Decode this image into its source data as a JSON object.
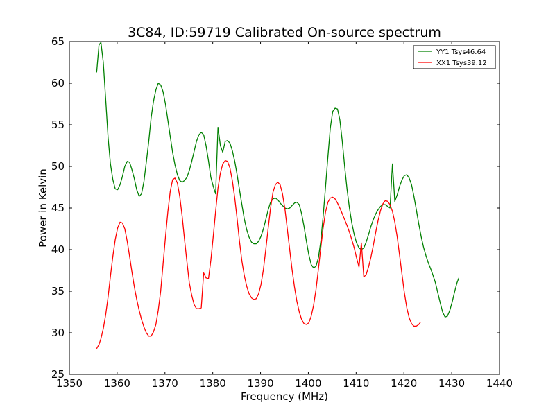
{
  "chart_data": {
    "type": "line",
    "title": "3C84, ID:59719 Calibrated On-source spectrum",
    "xlabel": "Frequency (MHz)",
    "ylabel": "Power in Kelvin",
    "xlim": [
      1350,
      1440
    ],
    "ylim": [
      25,
      65
    ],
    "xticks": [
      1350,
      1360,
      1370,
      1380,
      1390,
      1400,
      1410,
      1420,
      1430,
      1440
    ],
    "yticks": [
      25,
      30,
      35,
      40,
      45,
      50,
      55,
      60,
      65
    ],
    "xtick_labels": [
      "1350",
      "1360",
      "1370",
      "1380",
      "1390",
      "1400",
      "1410",
      "1420",
      "1430",
      "1440"
    ],
    "ytick_labels": [
      "25",
      "30",
      "35",
      "40",
      "45",
      "50",
      "55",
      "60",
      "65"
    ],
    "grid": false,
    "legend_position": "top-right",
    "series": [
      {
        "name": "YY1 Tsys46.64",
        "color": "#008000",
        "points": [
          [
            1355.7,
            61.3
          ],
          [
            1356.2,
            64.6
          ],
          [
            1356.6,
            64.9
          ],
          [
            1357.1,
            62.5
          ],
          [
            1357.6,
            58.0
          ],
          [
            1358.1,
            53.5
          ],
          [
            1358.6,
            50.3
          ],
          [
            1359.1,
            48.4
          ],
          [
            1359.6,
            47.3
          ],
          [
            1360.1,
            47.2
          ],
          [
            1360.6,
            47.8
          ],
          [
            1361.1,
            48.8
          ],
          [
            1361.6,
            50.0
          ],
          [
            1362.1,
            50.6
          ],
          [
            1362.6,
            50.5
          ],
          [
            1363.1,
            49.6
          ],
          [
            1363.6,
            48.5
          ],
          [
            1364.1,
            47.2
          ],
          [
            1364.6,
            46.4
          ],
          [
            1365.1,
            46.7
          ],
          [
            1365.6,
            48.2
          ],
          [
            1366.1,
            50.5
          ],
          [
            1366.6,
            53.0
          ],
          [
            1367.1,
            55.8
          ],
          [
            1367.6,
            57.8
          ],
          [
            1368.1,
            59.2
          ],
          [
            1368.6,
            60.0
          ],
          [
            1369.1,
            59.8
          ],
          [
            1369.6,
            59.0
          ],
          [
            1370.1,
            57.5
          ],
          [
            1370.6,
            55.6
          ],
          [
            1371.1,
            53.6
          ],
          [
            1371.6,
            51.7
          ],
          [
            1372.1,
            50.2
          ],
          [
            1372.6,
            49.0
          ],
          [
            1373.1,
            48.3
          ],
          [
            1373.6,
            48.1
          ],
          [
            1374.1,
            48.3
          ],
          [
            1374.6,
            48.7
          ],
          [
            1375.1,
            49.5
          ],
          [
            1375.6,
            50.6
          ],
          [
            1376.1,
            51.8
          ],
          [
            1376.6,
            53.0
          ],
          [
            1377.1,
            53.8
          ],
          [
            1377.6,
            54.1
          ],
          [
            1378.1,
            53.8
          ],
          [
            1378.6,
            52.5
          ],
          [
            1379.1,
            50.7
          ],
          [
            1379.6,
            48.7
          ],
          [
            1380.1,
            47.6
          ],
          [
            1380.6,
            46.7
          ],
          [
            1381.1,
            54.7
          ],
          [
            1381.6,
            52.5
          ],
          [
            1382.1,
            51.7
          ],
          [
            1382.6,
            53.0
          ],
          [
            1383.1,
            53.1
          ],
          [
            1383.6,
            52.8
          ],
          [
            1384.1,
            51.9
          ],
          [
            1384.6,
            50.6
          ],
          [
            1385.1,
            49.0
          ],
          [
            1385.6,
            47.2
          ],
          [
            1386.1,
            45.4
          ],
          [
            1386.6,
            43.7
          ],
          [
            1387.1,
            42.4
          ],
          [
            1387.6,
            41.5
          ],
          [
            1388.1,
            40.9
          ],
          [
            1388.6,
            40.7
          ],
          [
            1389.1,
            40.7
          ],
          [
            1389.6,
            41.0
          ],
          [
            1390.1,
            41.6
          ],
          [
            1390.6,
            42.5
          ],
          [
            1391.1,
            43.6
          ],
          [
            1391.6,
            44.8
          ],
          [
            1392.1,
            45.7
          ],
          [
            1392.6,
            46.1
          ],
          [
            1393.1,
            46.2
          ],
          [
            1393.6,
            46.0
          ],
          [
            1394.1,
            45.6
          ],
          [
            1394.6,
            45.3
          ],
          [
            1395.1,
            45.0
          ],
          [
            1395.6,
            44.9
          ],
          [
            1396.1,
            45.0
          ],
          [
            1396.6,
            45.3
          ],
          [
            1397.1,
            45.6
          ],
          [
            1397.6,
            45.7
          ],
          [
            1398.1,
            45.4
          ],
          [
            1398.6,
            44.3
          ],
          [
            1399.1,
            42.8
          ],
          [
            1399.6,
            41.0
          ],
          [
            1400.1,
            39.4
          ],
          [
            1400.6,
            38.2
          ],
          [
            1401.1,
            37.8
          ],
          [
            1401.6,
            38.0
          ],
          [
            1402.1,
            39.0
          ],
          [
            1402.6,
            41.0
          ],
          [
            1403.1,
            44.0
          ],
          [
            1403.6,
            47.5
          ],
          [
            1404.1,
            51.2
          ],
          [
            1404.6,
            54.6
          ],
          [
            1405.1,
            56.6
          ],
          [
            1405.6,
            57.0
          ],
          [
            1406.1,
            56.9
          ],
          [
            1406.6,
            55.6
          ],
          [
            1407.1,
            53.0
          ],
          [
            1407.6,
            50.0
          ],
          [
            1408.1,
            47.3
          ],
          [
            1408.6,
            45.0
          ],
          [
            1409.1,
            43.2
          ],
          [
            1409.6,
            41.8
          ],
          [
            1410.1,
            40.8
          ],
          [
            1410.6,
            40.2
          ],
          [
            1411.1,
            40.0
          ],
          [
            1411.6,
            40.2
          ],
          [
            1412.1,
            40.9
          ],
          [
            1412.6,
            41.8
          ],
          [
            1413.1,
            42.8
          ],
          [
            1413.6,
            43.6
          ],
          [
            1414.1,
            44.3
          ],
          [
            1414.6,
            44.8
          ],
          [
            1415.1,
            45.2
          ],
          [
            1415.6,
            45.4
          ],
          [
            1416.1,
            45.4
          ],
          [
            1416.6,
            45.2
          ],
          [
            1417.1,
            45.0
          ],
          [
            1417.6,
            50.3
          ],
          [
            1418.1,
            45.8
          ],
          [
            1418.6,
            46.6
          ],
          [
            1419.1,
            47.6
          ],
          [
            1419.6,
            48.4
          ],
          [
            1420.1,
            48.9
          ],
          [
            1420.6,
            49.0
          ],
          [
            1421.1,
            48.6
          ],
          [
            1421.6,
            47.8
          ],
          [
            1422.1,
            46.4
          ],
          [
            1422.6,
            44.8
          ],
          [
            1423.1,
            43.1
          ],
          [
            1423.6,
            41.6
          ],
          [
            1424.1,
            40.3
          ],
          [
            1424.6,
            39.3
          ],
          [
            1425.1,
            38.4
          ],
          [
            1425.6,
            37.7
          ],
          [
            1426.1,
            36.9
          ],
          [
            1426.6,
            36.0
          ],
          [
            1427.1,
            34.8
          ],
          [
            1427.6,
            33.6
          ],
          [
            1428.1,
            32.5
          ],
          [
            1428.6,
            31.9
          ],
          [
            1429.1,
            32.0
          ],
          [
            1429.6,
            32.7
          ],
          [
            1430.1,
            33.7
          ],
          [
            1430.6,
            34.9
          ],
          [
            1431.1,
            36.0
          ],
          [
            1431.5,
            36.6
          ]
        ]
      },
      {
        "name": "XX1 Tsys39.12",
        "color": "#ff0000",
        "points": [
          [
            1355.7,
            28.1
          ],
          [
            1356.2,
            28.6
          ],
          [
            1356.6,
            29.3
          ],
          [
            1357.1,
            30.5
          ],
          [
            1357.6,
            32.2
          ],
          [
            1358.1,
            34.3
          ],
          [
            1358.6,
            36.8
          ],
          [
            1359.1,
            39.2
          ],
          [
            1359.6,
            41.2
          ],
          [
            1360.1,
            42.6
          ],
          [
            1360.6,
            43.3
          ],
          [
            1361.1,
            43.2
          ],
          [
            1361.6,
            42.5
          ],
          [
            1362.1,
            41.0
          ],
          [
            1362.6,
            39.2
          ],
          [
            1363.1,
            37.3
          ],
          [
            1363.6,
            35.5
          ],
          [
            1364.1,
            34.0
          ],
          [
            1364.6,
            32.7
          ],
          [
            1365.1,
            31.6
          ],
          [
            1365.6,
            30.7
          ],
          [
            1366.1,
            30.0
          ],
          [
            1366.6,
            29.6
          ],
          [
            1367.1,
            29.6
          ],
          [
            1367.6,
            30.1
          ],
          [
            1368.1,
            31.0
          ],
          [
            1368.6,
            32.7
          ],
          [
            1369.1,
            35.0
          ],
          [
            1369.6,
            38.2
          ],
          [
            1370.1,
            41.5
          ],
          [
            1370.6,
            44.5
          ],
          [
            1371.1,
            47.0
          ],
          [
            1371.6,
            48.4
          ],
          [
            1372.1,
            48.6
          ],
          [
            1372.6,
            48.0
          ],
          [
            1373.1,
            46.4
          ],
          [
            1373.6,
            44.0
          ],
          [
            1374.1,
            41.2
          ],
          [
            1374.6,
            38.5
          ],
          [
            1375.1,
            36.0
          ],
          [
            1375.6,
            34.5
          ],
          [
            1376.1,
            33.4
          ],
          [
            1376.6,
            32.9
          ],
          [
            1377.1,
            32.9
          ],
          [
            1377.6,
            33.0
          ],
          [
            1378.1,
            37.2
          ],
          [
            1378.6,
            36.6
          ],
          [
            1379.1,
            36.5
          ],
          [
            1379.6,
            38.7
          ],
          [
            1380.1,
            41.6
          ],
          [
            1380.6,
            44.6
          ],
          [
            1381.1,
            47.4
          ],
          [
            1381.6,
            49.2
          ],
          [
            1382.1,
            50.3
          ],
          [
            1382.6,
            50.7
          ],
          [
            1383.1,
            50.6
          ],
          [
            1383.6,
            49.8
          ],
          [
            1384.1,
            48.3
          ],
          [
            1384.6,
            46.2
          ],
          [
            1385.1,
            43.7
          ],
          [
            1385.6,
            41.0
          ],
          [
            1386.1,
            38.6
          ],
          [
            1386.6,
            36.9
          ],
          [
            1387.1,
            35.6
          ],
          [
            1387.6,
            34.7
          ],
          [
            1388.1,
            34.2
          ],
          [
            1388.6,
            34.0
          ],
          [
            1389.1,
            34.1
          ],
          [
            1389.6,
            34.7
          ],
          [
            1390.1,
            35.8
          ],
          [
            1390.6,
            37.6
          ],
          [
            1391.1,
            40.0
          ],
          [
            1391.6,
            42.6
          ],
          [
            1392.1,
            45.0
          ],
          [
            1392.6,
            46.9
          ],
          [
            1393.1,
            47.8
          ],
          [
            1393.6,
            48.1
          ],
          [
            1394.1,
            47.8
          ],
          [
            1394.6,
            46.7
          ],
          [
            1395.1,
            44.9
          ],
          [
            1395.6,
            42.5
          ],
          [
            1396.1,
            40.0
          ],
          [
            1396.6,
            37.6
          ],
          [
            1397.1,
            35.5
          ],
          [
            1397.6,
            33.8
          ],
          [
            1398.1,
            32.5
          ],
          [
            1398.6,
            31.6
          ],
          [
            1399.1,
            31.1
          ],
          [
            1399.6,
            31.0
          ],
          [
            1400.1,
            31.2
          ],
          [
            1400.6,
            32.0
          ],
          [
            1401.1,
            33.3
          ],
          [
            1401.6,
            35.2
          ],
          [
            1402.1,
            37.6
          ],
          [
            1402.6,
            40.2
          ],
          [
            1403.1,
            42.6
          ],
          [
            1403.6,
            44.5
          ],
          [
            1404.1,
            45.7
          ],
          [
            1404.6,
            46.2
          ],
          [
            1405.1,
            46.3
          ],
          [
            1405.6,
            46.1
          ],
          [
            1406.1,
            45.6
          ],
          [
            1406.6,
            45.0
          ],
          [
            1407.1,
            44.3
          ],
          [
            1407.6,
            43.6
          ],
          [
            1408.1,
            42.9
          ],
          [
            1408.6,
            42.1
          ],
          [
            1409.1,
            41.2
          ],
          [
            1409.6,
            40.2
          ],
          [
            1410.1,
            39.0
          ],
          [
            1410.6,
            37.9
          ],
          [
            1411.1,
            40.8
          ],
          [
            1411.6,
            36.7
          ],
          [
            1412.1,
            37.0
          ],
          [
            1412.6,
            37.9
          ],
          [
            1413.1,
            39.1
          ],
          [
            1413.6,
            40.5
          ],
          [
            1414.1,
            42.1
          ],
          [
            1414.6,
            43.5
          ],
          [
            1415.1,
            44.7
          ],
          [
            1415.6,
            45.5
          ],
          [
            1416.1,
            45.9
          ],
          [
            1416.6,
            45.8
          ],
          [
            1417.1,
            45.4
          ],
          [
            1417.6,
            44.6
          ],
          [
            1418.1,
            43.3
          ],
          [
            1418.6,
            41.5
          ],
          [
            1419.1,
            39.3
          ],
          [
            1419.6,
            37.0
          ],
          [
            1420.1,
            34.8
          ],
          [
            1420.6,
            33.0
          ],
          [
            1421.1,
            31.8
          ],
          [
            1421.6,
            31.1
          ],
          [
            1422.1,
            30.8
          ],
          [
            1422.6,
            30.8
          ],
          [
            1423.1,
            31.0
          ],
          [
            1423.5,
            31.3
          ]
        ]
      }
    ]
  }
}
